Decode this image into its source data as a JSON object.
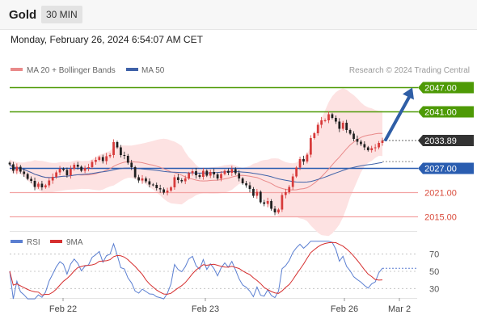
{
  "header": {
    "symbol": "Gold",
    "timeframe": "30 MIN",
    "datetime": "Monday, February 26, 2024 6:54:07 AM CET"
  },
  "legend": {
    "ma20": "MA 20 + Bollinger Bands",
    "ma50": "MA 50",
    "credit": "Research © 2024 Trading Central"
  },
  "colors": {
    "bullish": "#d73a3a",
    "bearish": "#1f1f1f",
    "ma20": "#e98a8a",
    "ma50": "#3f62a8",
    "bollinger_fill": "#fde2e2",
    "resistance": "#4e9a06",
    "pivot": "#2a5db0",
    "support": "#f3a3a3",
    "current": "#333333",
    "arrow": "#2f5ea6",
    "rsi": "#5b7fd1",
    "rsi_ma": "#d62f2f"
  },
  "chart_data": [
    {
      "type": "candlestick",
      "title": "Gold",
      "timeframe": "30 MIN",
      "x_ticks": [
        "Feb 22",
        "Feb 23",
        "Feb 26",
        "Mar 2"
      ],
      "ylim": [
        2012.5,
        2049.5
      ],
      "current_price": 2033.89,
      "levels": [
        {
          "label": "2047.00",
          "value": 2047.0,
          "kind": "resistance"
        },
        {
          "label": "2041.00",
          "value": 2041.0,
          "kind": "resistance"
        },
        {
          "label": "2027.00",
          "value": 2027.0,
          "kind": "pivot"
        },
        {
          "label": "2021.00",
          "value": 2021.0,
          "kind": "support"
        },
        {
          "label": "2015.00",
          "value": 2015.0,
          "kind": "support"
        }
      ],
      "closes": [
        2028.0,
        2026.4,
        2027.4,
        2026.2,
        2025.6,
        2024.4,
        2023.9,
        2022.4,
        2023.2,
        2022.3,
        2022.8,
        2024.0,
        2024.9,
        2026.0,
        2026.9,
        2026.6,
        2025.3,
        2026.9,
        2027.9,
        2027.4,
        2026.4,
        2027.1,
        2027.3,
        2028.6,
        2029.1,
        2029.8,
        2028.8,
        2030.0,
        2030.3,
        2033.5,
        2032.2,
        2030.3,
        2030.1,
        2028.4,
        2027.3,
        2024.8,
        2024.0,
        2024.5,
        2023.8,
        2023.0,
        2022.9,
        2022.1,
        2021.8,
        2021.0,
        2021.5,
        2022.3,
        2024.8,
        2024.1,
        2023.8,
        2024.5,
        2025.8,
        2026.3,
        2025.3,
        2024.9,
        2026.4,
        2025.2,
        2026.1,
        2025.5,
        2024.5,
        2025.6,
        2026.4,
        2025.9,
        2026.8,
        2025.8,
        2024.5,
        2023.3,
        2022.8,
        2021.9,
        2020.2,
        2021.2,
        2018.6,
        2018.2,
        2018.9,
        2017.0,
        2016.1,
        2016.8,
        2020.4,
        2021.1,
        2022.4,
        2025.0,
        2027.2,
        2029.3,
        2028.7,
        2030.4,
        2034.5,
        2035.7,
        2037.8,
        2038.9,
        2038.9,
        2040.4,
        2039.5,
        2038.6,
        2036.8,
        2038.3,
        2036.5,
        2035.6,
        2034.3,
        2033.6,
        2033.0,
        2032.2,
        2031.5,
        2032.0,
        2032.2,
        2033.3,
        2033.9
      ],
      "tool": "prices read approximately from candle positions; 105 bars"
    },
    {
      "type": "line",
      "title": "RSI",
      "series": [
        {
          "name": "RSI"
        },
        {
          "name": "9MA"
        }
      ],
      "y_ticks": [
        70,
        50,
        30
      ],
      "ylim": [
        20,
        80
      ]
    }
  ]
}
